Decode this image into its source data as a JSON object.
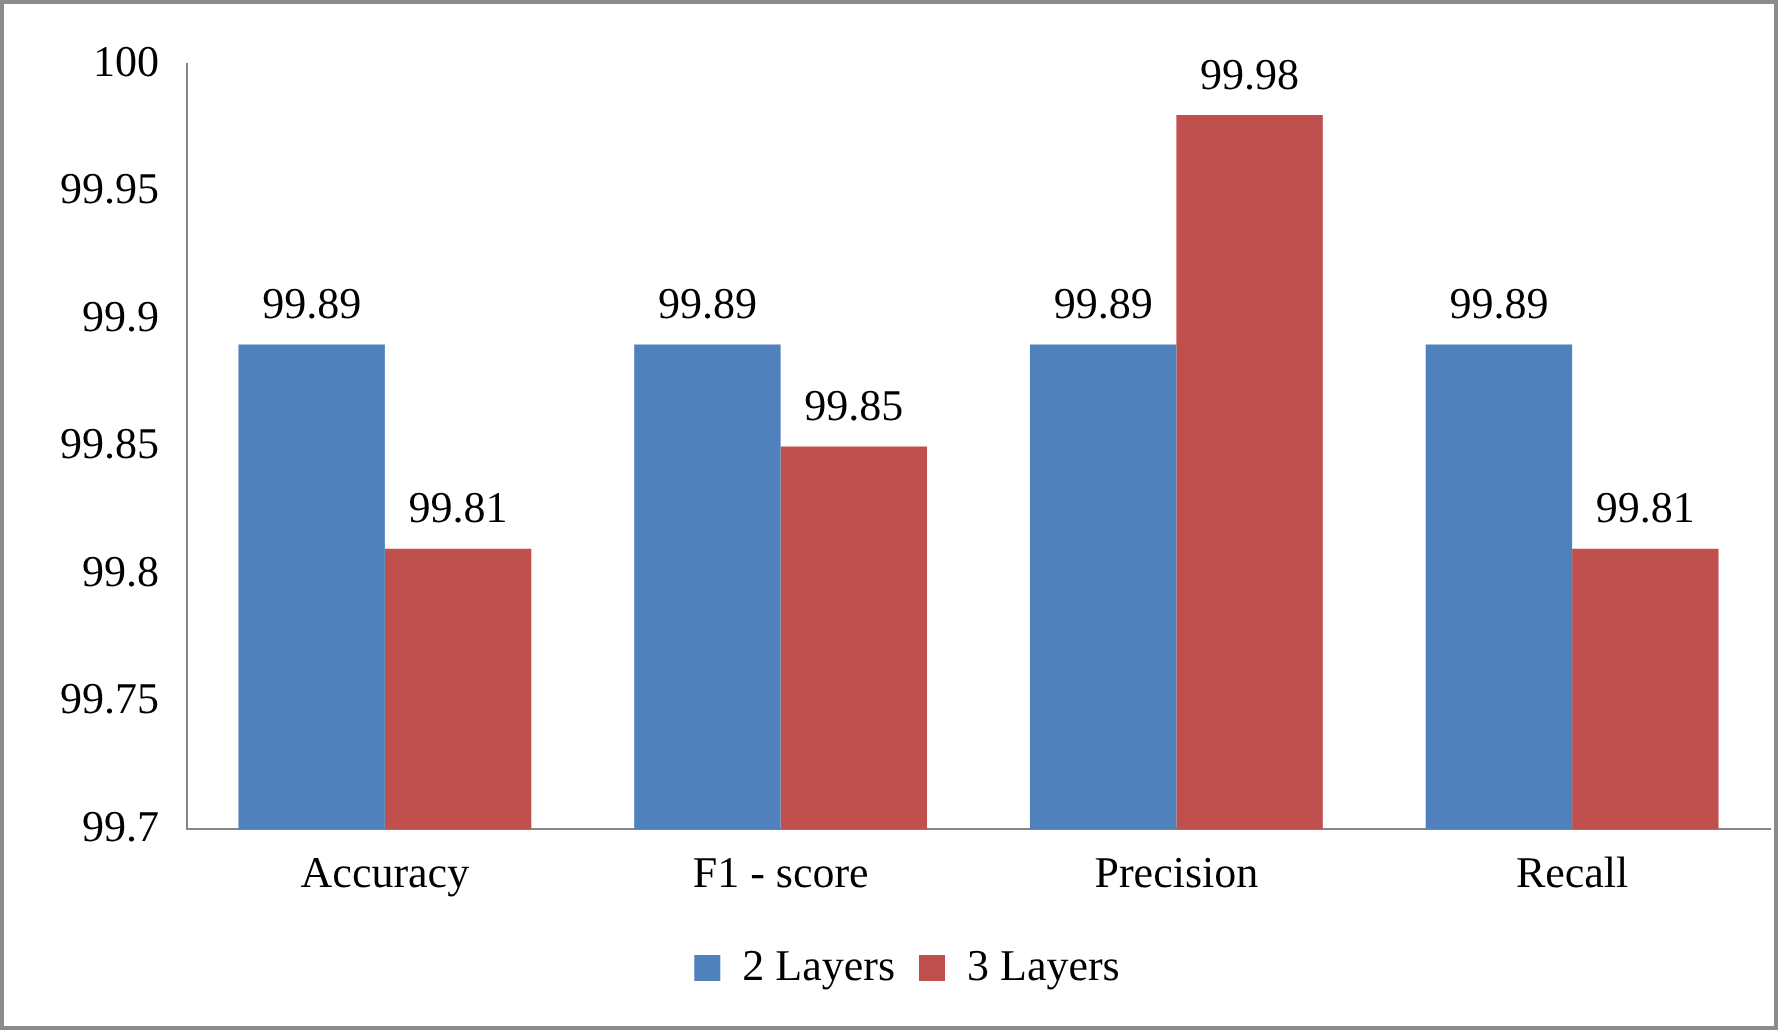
{
  "chart_data": {
    "type": "bar",
    "categories": [
      "Accuracy",
      "F1 - score",
      "Precision",
      "Recall"
    ],
    "series": [
      {
        "name": "2 Layers",
        "color": "#4f81bd",
        "values": [
          99.89,
          99.89,
          99.89,
          99.89
        ]
      },
      {
        "name": "3 Layers",
        "color": "#c0504d",
        "values": [
          99.81,
          99.85,
          99.98,
          99.81
        ]
      }
    ],
    "ylim": [
      99.7,
      100
    ],
    "yticks": [
      99.7,
      99.75,
      99.8,
      99.85,
      99.9,
      99.95,
      100
    ],
    "grid": false,
    "legend": "bottom",
    "data_labels": true
  }
}
